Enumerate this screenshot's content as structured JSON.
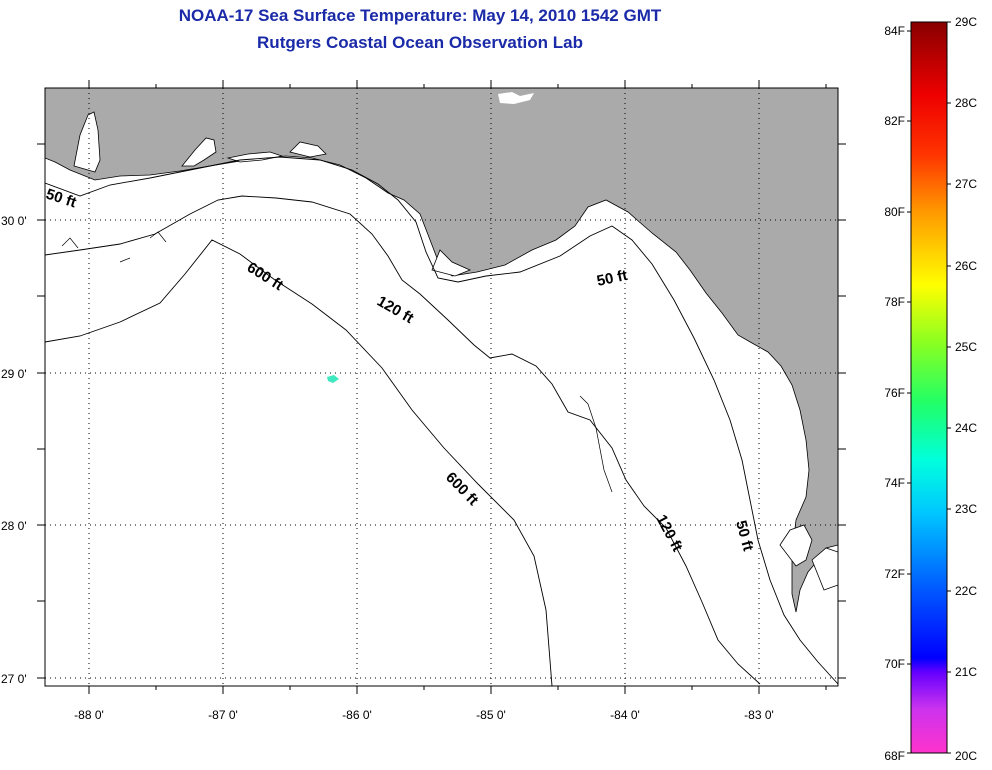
{
  "title": {
    "line1": "NOAA-17 Sea Surface Temperature:  May 14, 2010 1542 GMT",
    "line2": "Rutgers Coastal Ocean Observation Lab"
  },
  "map": {
    "longitude_labels": [
      "-88 0'",
      "-87 0'",
      "-86 0'",
      "-85 0'",
      "-84 0'",
      "-83 0'"
    ],
    "latitude_labels": [
      "30 0'",
      "29 0'",
      "28 0'",
      "27 0'"
    ],
    "contour_labels": {
      "c50_west": "50 ft",
      "c50_mid": "50 ft",
      "c50_south": "50 ft",
      "c120_north": "120 ft",
      "c120_south": "120 ft",
      "c600_north": "600 ft",
      "c600_south": "600 ft"
    },
    "colors": {
      "land": "#aaaaaa",
      "water": "#ffffff",
      "sst_patch": "#40e8c0"
    }
  },
  "colorbar": {
    "fahrenheit_labels": [
      "84F",
      "82F",
      "80F",
      "78F",
      "76F",
      "74F",
      "72F",
      "70F",
      "68F"
    ],
    "celsius_labels": [
      "29C",
      "28C",
      "27C",
      "26C",
      "25C",
      "24C",
      "23C",
      "22C",
      "21C",
      "20C"
    ]
  }
}
